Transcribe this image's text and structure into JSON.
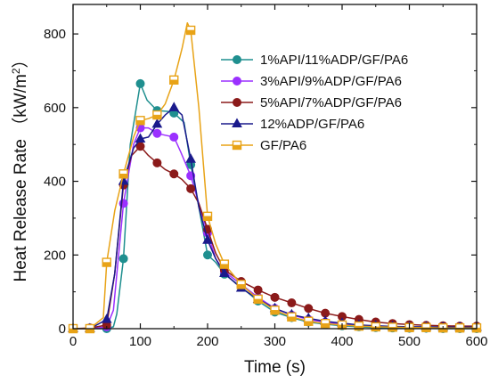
{
  "chart_data": {
    "type": "line",
    "xlabel": "Time (s)",
    "ylabel_main": "Heat Release Rate （kW/m",
    "ylabel_sup": "2",
    "ylabel_tail": "）",
    "xlim": [
      0,
      600
    ],
    "ylim": [
      0,
      880
    ],
    "xticks": [
      0,
      100,
      200,
      300,
      400,
      500,
      600
    ],
    "yticks": [
      0,
      200,
      400,
      600,
      800
    ],
    "xtick_labels": [
      "0",
      "100",
      "200",
      "300",
      "400",
      "500",
      "600"
    ],
    "ytick_labels": [
      "0",
      "200",
      "400",
      "600",
      "800"
    ],
    "legend_position": "top-right",
    "grid": false,
    "series": [
      {
        "name": "1%API/11%ADP/GF/PA6",
        "color": "#1f8f8f",
        "marker": "circle-filled",
        "points": [
          [
            0,
            0
          ],
          [
            25,
            0
          ],
          [
            50,
            0
          ],
          [
            60,
            5
          ],
          [
            65,
            40
          ],
          [
            75,
            190
          ],
          [
            85,
            500
          ],
          [
            100,
            665
          ],
          [
            110,
            620
          ],
          [
            125,
            592
          ],
          [
            140,
            590
          ],
          [
            150,
            585
          ],
          [
            165,
            560
          ],
          [
            175,
            445
          ],
          [
            187,
            330
          ],
          [
            200,
            200
          ],
          [
            212,
            180
          ],
          [
            225,
            148
          ],
          [
            250,
            113
          ],
          [
            275,
            75
          ],
          [
            300,
            45
          ],
          [
            325,
            30
          ],
          [
            350,
            18
          ],
          [
            375,
            12
          ],
          [
            400,
            8
          ],
          [
            425,
            5
          ],
          [
            450,
            3
          ],
          [
            475,
            2
          ],
          [
            500,
            1
          ],
          [
            525,
            1
          ],
          [
            550,
            0
          ],
          [
            575,
            0
          ],
          [
            600,
            0
          ]
        ],
        "markers_x": [
          0,
          25,
          50,
          75,
          100,
          125,
          150,
          175,
          200,
          225,
          250,
          275,
          300,
          325,
          350,
          375,
          400,
          425,
          450,
          475,
          500,
          525,
          550,
          575,
          600
        ]
      },
      {
        "name": "3%API/9%ADP/GF/PA6",
        "color": "#9b30ff",
        "marker": "circle-filled",
        "points": [
          [
            0,
            0
          ],
          [
            25,
            0
          ],
          [
            50,
            5
          ],
          [
            60,
            50
          ],
          [
            75,
            340
          ],
          [
            90,
            500
          ],
          [
            100,
            545
          ],
          [
            112,
            545
          ],
          [
            125,
            530
          ],
          [
            137,
            525
          ],
          [
            150,
            520
          ],
          [
            160,
            480
          ],
          [
            175,
            415
          ],
          [
            187,
            340
          ],
          [
            200,
            260
          ],
          [
            212,
            190
          ],
          [
            225,
            155
          ],
          [
            250,
            120
          ],
          [
            275,
            85
          ],
          [
            300,
            55
          ],
          [
            325,
            37
          ],
          [
            350,
            25
          ],
          [
            375,
            18
          ],
          [
            400,
            12
          ],
          [
            425,
            9
          ],
          [
            450,
            6
          ],
          [
            475,
            5
          ],
          [
            500,
            4
          ],
          [
            525,
            3
          ],
          [
            550,
            2
          ],
          [
            575,
            2
          ],
          [
            600,
            2
          ]
        ],
        "markers_x": [
          0,
          25,
          50,
          75,
          100,
          125,
          150,
          175,
          200,
          225,
          250,
          275,
          300,
          325,
          350,
          375,
          400,
          425,
          450,
          475,
          500,
          525,
          550,
          575,
          600
        ]
      },
      {
        "name": "5%API/7%ADP/GF/PA6",
        "color": "#8b1a1a",
        "marker": "circle-filled",
        "points": [
          [
            0,
            0
          ],
          [
            25,
            2
          ],
          [
            50,
            10
          ],
          [
            62,
            150
          ],
          [
            75,
            390
          ],
          [
            87,
            470
          ],
          [
            100,
            495
          ],
          [
            112,
            470
          ],
          [
            125,
            450
          ],
          [
            137,
            432
          ],
          [
            150,
            420
          ],
          [
            162,
            405
          ],
          [
            175,
            380
          ],
          [
            187,
            340
          ],
          [
            200,
            270
          ],
          [
            212,
            205
          ],
          [
            225,
            160
          ],
          [
            250,
            128
          ],
          [
            275,
            105
          ],
          [
            300,
            85
          ],
          [
            325,
            70
          ],
          [
            350,
            55
          ],
          [
            375,
            42
          ],
          [
            400,
            33
          ],
          [
            425,
            25
          ],
          [
            450,
            18
          ],
          [
            475,
            14
          ],
          [
            500,
            11
          ],
          [
            525,
            9
          ],
          [
            550,
            8
          ],
          [
            575,
            7
          ],
          [
            600,
            7
          ]
        ],
        "markers_x": [
          0,
          25,
          50,
          75,
          100,
          125,
          150,
          175,
          200,
          225,
          250,
          275,
          300,
          325,
          350,
          375,
          400,
          425,
          450,
          475,
          500,
          525,
          550,
          575,
          600
        ]
      },
      {
        "name": "12%ADP/GF/PA6",
        "color": "#1a1a8c",
        "marker": "triangle-filled",
        "points": [
          [
            0,
            0
          ],
          [
            25,
            0
          ],
          [
            50,
            25
          ],
          [
            62,
            150
          ],
          [
            75,
            400
          ],
          [
            90,
            490
          ],
          [
            100,
            515
          ],
          [
            112,
            520
          ],
          [
            125,
            555
          ],
          [
            137,
            580
          ],
          [
            150,
            600
          ],
          [
            162,
            580
          ],
          [
            175,
            460
          ],
          [
            187,
            330
          ],
          [
            200,
            240
          ],
          [
            212,
            190
          ],
          [
            225,
            150
          ],
          [
            250,
            110
          ],
          [
            275,
            80
          ],
          [
            300,
            55
          ],
          [
            325,
            38
          ],
          [
            350,
            28
          ],
          [
            375,
            20
          ],
          [
            400,
            15
          ],
          [
            425,
            10
          ],
          [
            450,
            8
          ],
          [
            475,
            6
          ],
          [
            500,
            5
          ],
          [
            525,
            5
          ],
          [
            550,
            4
          ],
          [
            575,
            4
          ],
          [
            600,
            4
          ]
        ],
        "markers_x": [
          0,
          25,
          50,
          75,
          100,
          125,
          150,
          175,
          200,
          225,
          250,
          275,
          300,
          325,
          350,
          375,
          400,
          425,
          450,
          475,
          500,
          525,
          550,
          575,
          600
        ]
      },
      {
        "name": "GF/PA6",
        "color": "#e8a317",
        "marker": "square-open",
        "points": [
          [
            0,
            0
          ],
          [
            25,
            0
          ],
          [
            45,
            30
          ],
          [
            50,
            180
          ],
          [
            62,
            320
          ],
          [
            75,
            420
          ],
          [
            90,
            520
          ],
          [
            100,
            565
          ],
          [
            112,
            570
          ],
          [
            125,
            580
          ],
          [
            137,
            610
          ],
          [
            150,
            675
          ],
          [
            162,
            760
          ],
          [
            170,
            830
          ],
          [
            175,
            810
          ],
          [
            187,
            600
          ],
          [
            200,
            305
          ],
          [
            212,
            230
          ],
          [
            225,
            175
          ],
          [
            250,
            120
          ],
          [
            275,
            80
          ],
          [
            300,
            50
          ],
          [
            325,
            32
          ],
          [
            350,
            20
          ],
          [
            375,
            14
          ],
          [
            400,
            10
          ],
          [
            425,
            7
          ],
          [
            450,
            5
          ],
          [
            475,
            4
          ],
          [
            500,
            3
          ],
          [
            525,
            3
          ],
          [
            550,
            2
          ],
          [
            575,
            2
          ],
          [
            600,
            2
          ]
        ],
        "markers_x": [
          0,
          25,
          50,
          75,
          100,
          125,
          150,
          175,
          200,
          225,
          250,
          275,
          300,
          325,
          350,
          375,
          400,
          425,
          450,
          475,
          500,
          525,
          550,
          575,
          600
        ]
      }
    ]
  }
}
